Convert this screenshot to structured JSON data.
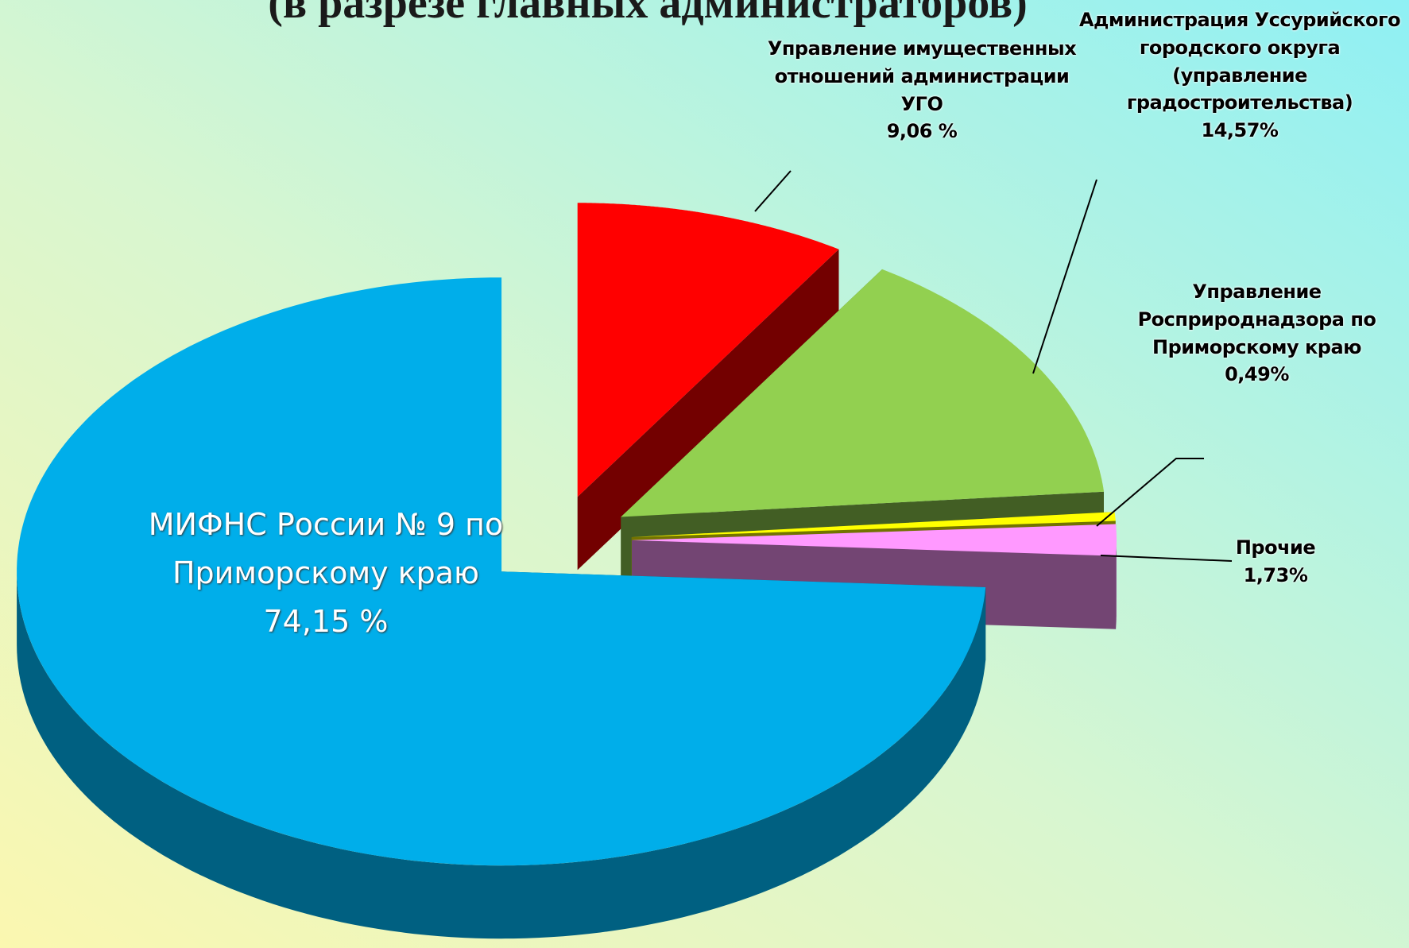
{
  "chart_data": {
    "type": "pie3d",
    "title": "(в разрезе главных администраторов)",
    "categories": [
      "Управление имущественных отношений администрации УГО",
      "Администрация Уссурийского городского округа (управление градостроительства)",
      "Управление Росприроднадзора по Приморскому краю",
      "Прочие",
      "МИФНС России № 9 по Приморскому краю"
    ],
    "values": [
      9.06,
      14.57,
      0.49,
      1.73,
      74.15
    ],
    "value_labels": [
      "9,06 %",
      "14,57%",
      "0,49%",
      "1,73%",
      "74,15 %"
    ],
    "colors": [
      "#ff0000",
      "#92d050",
      "#ffff00",
      "#ff99ff",
      "#00aeea"
    ]
  }
}
